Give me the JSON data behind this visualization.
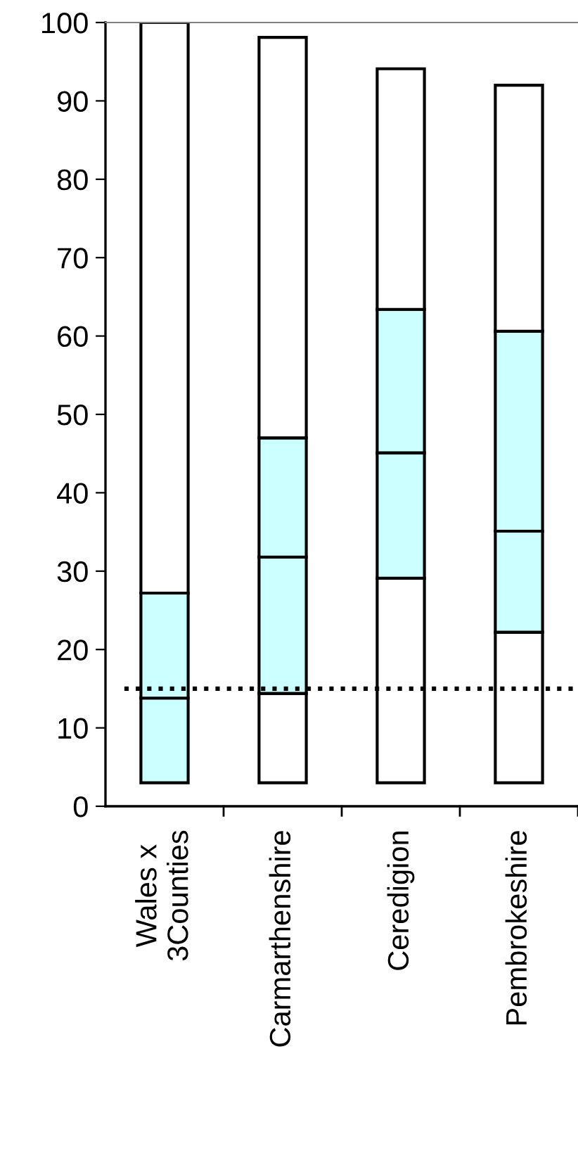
{
  "chart_data": {
    "type": "bar",
    "categories": [
      "Wales x\n3Counties",
      "Carmarthenshire",
      "Ceredigion",
      "Pembrokeshire"
    ],
    "series": [
      {
        "color": "#ffffff",
        "base": [
          null,
          3,
          3,
          3
        ],
        "values": [
          null,
          11.4,
          26.1,
          19.2
        ]
      },
      {
        "color": "#ccffff",
        "base": [
          3,
          14.4,
          29.1,
          22.2
        ],
        "values": [
          10.8,
          17.4,
          16.0,
          12.9
        ]
      },
      {
        "color": "#ccffff",
        "base": [
          13.8,
          31.8,
          45.1,
          35.1
        ],
        "values": [
          13.4,
          15.2,
          18.3,
          25.5
        ]
      },
      {
        "color": "#ffffff",
        "base": [
          27.2,
          47.0,
          63.4,
          60.6
        ],
        "values": [
          72.8,
          51.1,
          30.7,
          31.4
        ]
      }
    ],
    "ylim": [
      0,
      100
    ],
    "yticks": [
      0,
      10,
      20,
      30,
      40,
      50,
      60,
      70,
      80,
      90,
      100
    ],
    "grid": false,
    "legend": false,
    "ref_lines": [
      {
        "axis": "y",
        "value": 15,
        "line_style": "dotted",
        "color": "#000000"
      }
    ]
  }
}
